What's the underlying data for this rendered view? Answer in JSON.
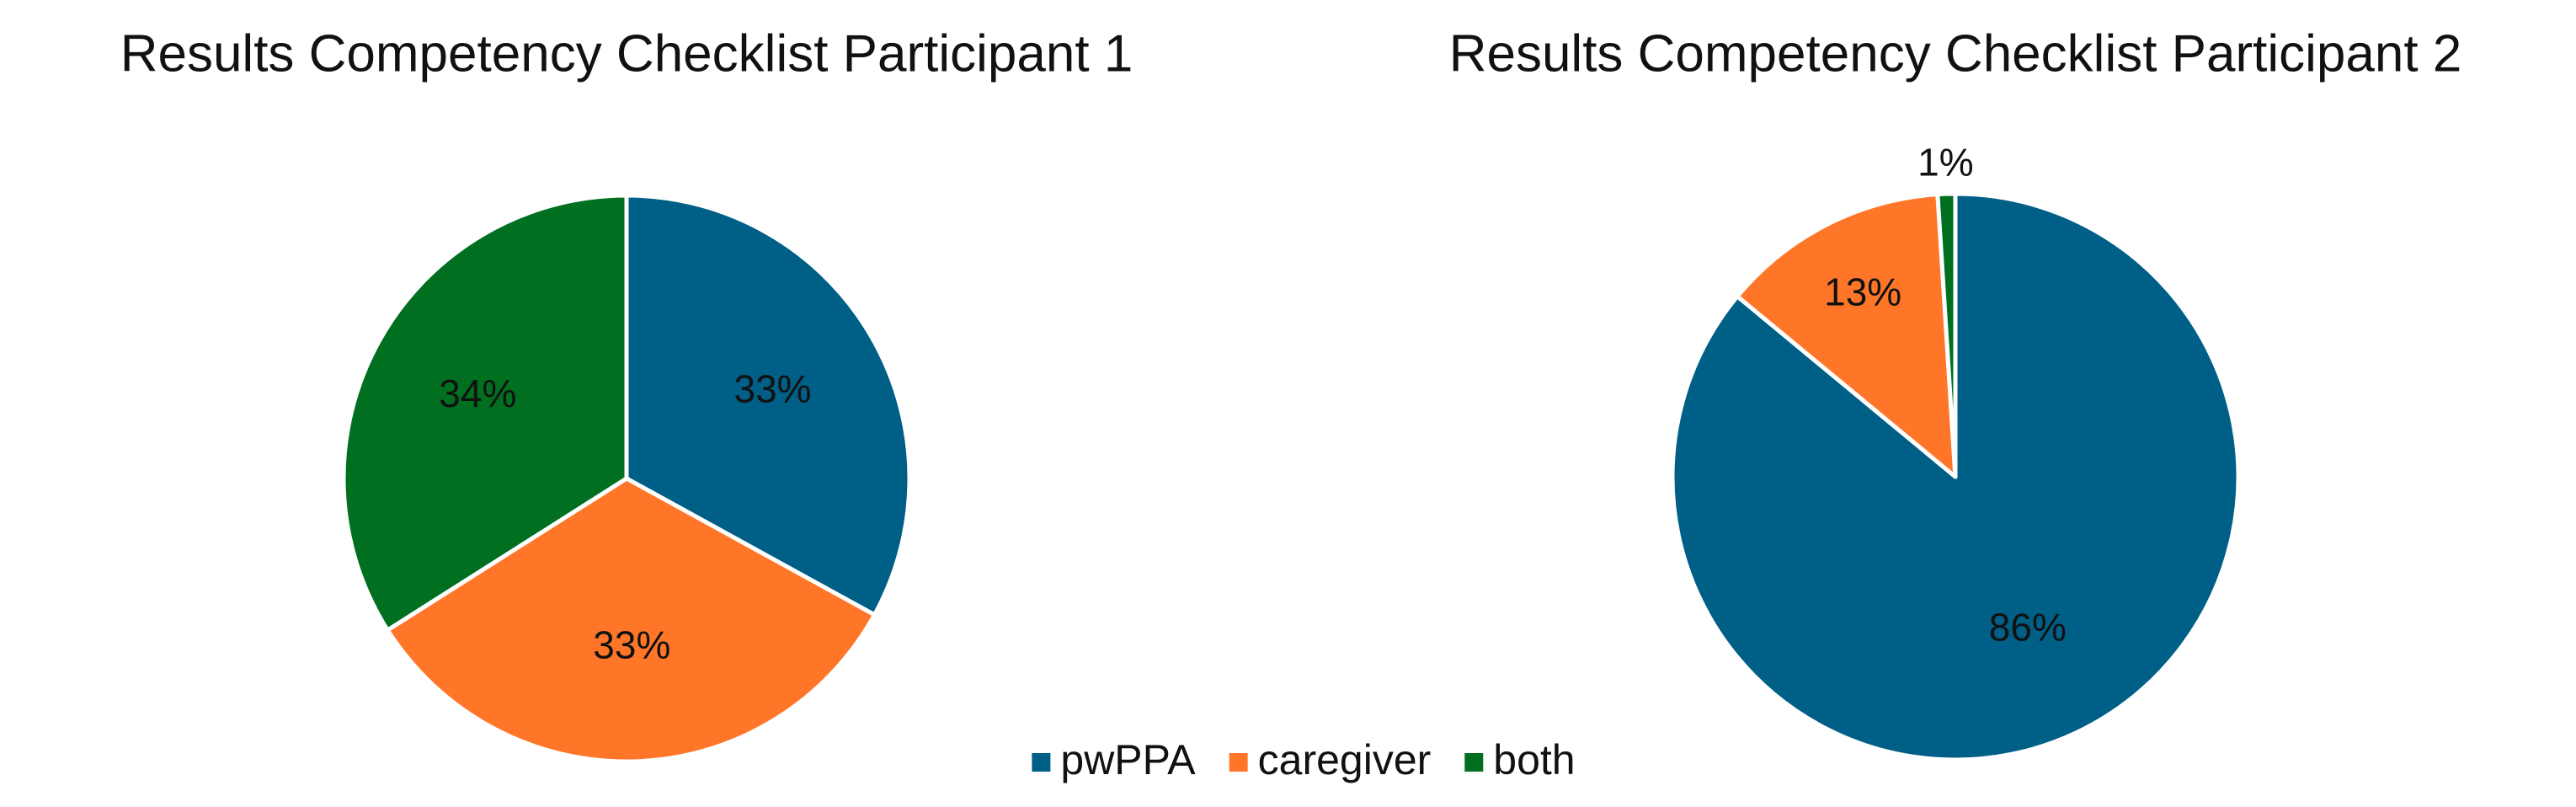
{
  "chart_data": [
    {
      "type": "pie",
      "title": "Results Competency Checklist Participant 1",
      "categories": [
        "pwPPA",
        "caregiver",
        "both"
      ],
      "values": [
        33,
        33,
        34
      ],
      "value_labels": [
        "33%",
        "33%",
        "34%"
      ],
      "colors": [
        "#005f87",
        "#ff7628",
        "#007020"
      ]
    },
    {
      "type": "pie",
      "title": "Results Competency Checklist Participant 2",
      "categories": [
        "pwPPA",
        "caregiver",
        "both"
      ],
      "values": [
        86,
        13,
        1
      ],
      "value_labels": [
        "86%",
        "13%",
        "1%"
      ],
      "colors": [
        "#005f87",
        "#ff7628",
        "#007020"
      ]
    }
  ]
}
